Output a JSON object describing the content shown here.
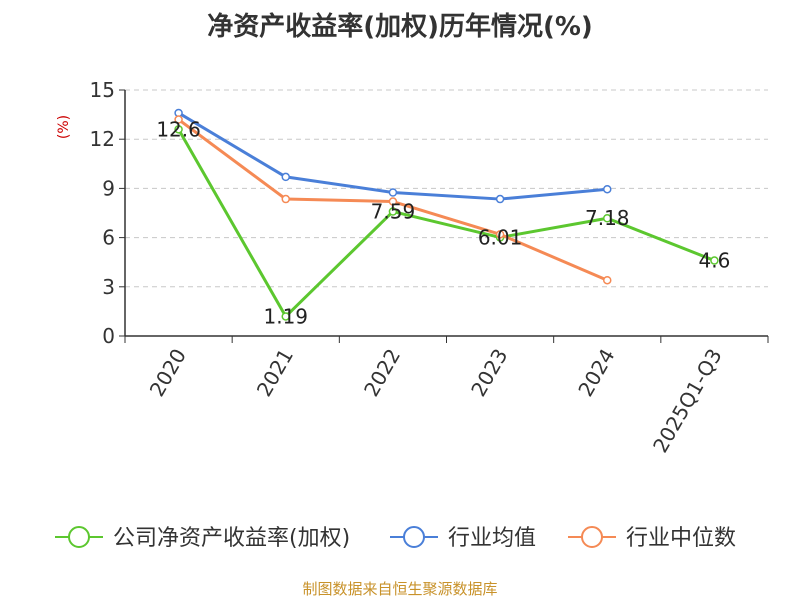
{
  "chart_data": {
    "type": "line",
    "title": "净资产收益率(加权)历年情况(%)",
    "ylabel": "(%)",
    "ylim": [
      0,
      15
    ],
    "yticks": [
      0,
      3,
      6,
      9,
      12,
      15
    ],
    "grid": true,
    "legend_position": "bottom",
    "categories": [
      "2020",
      "2021",
      "2022",
      "2023",
      "2024",
      "2025Q1-Q3"
    ],
    "series": [
      {
        "name": "公司净资产收益率(加权)",
        "color": "#5cc72f",
        "values": [
          12.6,
          1.19,
          7.59,
          6.01,
          7.18,
          4.6
        ],
        "labels": [
          "12.6",
          "1.19",
          "7.59",
          "6.01",
          "7.18",
          "4.6"
        ]
      },
      {
        "name": "行业均值",
        "color": "#4a7fd8",
        "values": [
          13.6,
          9.7,
          8.75,
          8.35,
          8.95,
          null
        ]
      },
      {
        "name": "行业中位数",
        "color": "#f58a55",
        "values": [
          13.2,
          8.35,
          8.2,
          6.2,
          3.4,
          null
        ]
      }
    ]
  },
  "footer": {
    "source": "制图数据来自恒生聚源数据库"
  }
}
